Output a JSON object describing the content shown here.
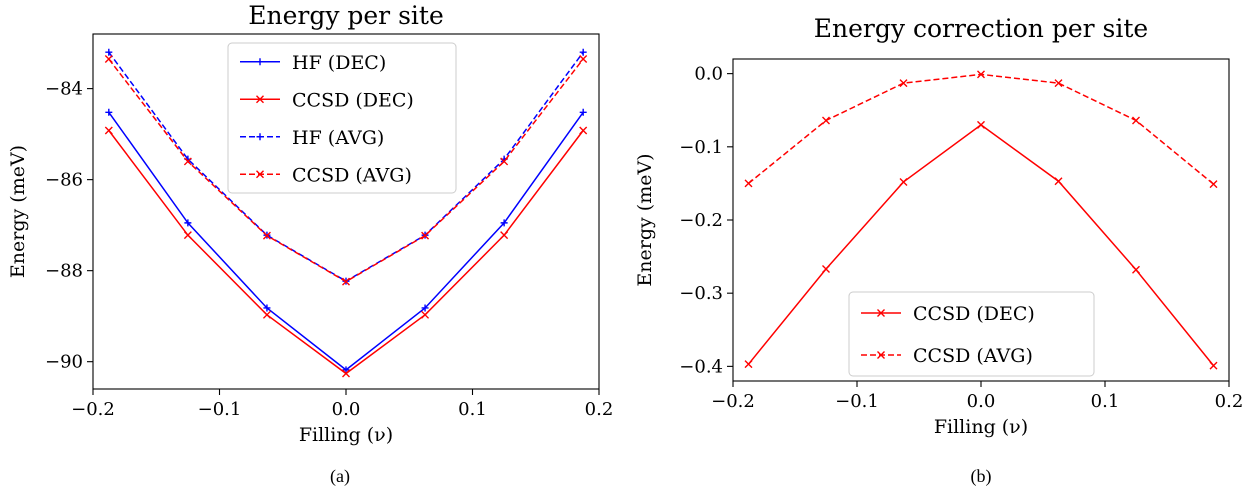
{
  "chart_data": [
    {
      "type": "line",
      "title": "Energy per site",
      "xlabel": "Filling (ν)",
      "ylabel": "Energy (meV)",
      "caption": "(a)",
      "xlim": [
        -0.2,
        0.2
      ],
      "ylim": [
        -90.6,
        -82.8
      ],
      "xticks": [
        -0.2,
        -0.1,
        0.0,
        0.1,
        0.2
      ],
      "xtick_labels": [
        "−0.2",
        "−0.1",
        "0.0",
        "0.1",
        "0.2"
      ],
      "yticks": [
        -84,
        -86,
        -88,
        -90
      ],
      "ytick_labels": [
        "−84",
        "−86",
        "−88",
        "−90"
      ],
      "x": [
        -0.1875,
        -0.125,
        -0.0625,
        0.0,
        0.0625,
        0.125,
        0.1875
      ],
      "legend_position": "top-center",
      "series": [
        {
          "name": "HF (DEC)",
          "color": "#0000ff",
          "dashed": false,
          "marker": "plus",
          "values": [
            -84.52,
            -86.95,
            -88.82,
            -90.18,
            -88.82,
            -86.95,
            -84.52
          ]
        },
        {
          "name": "CCSD (DEC)",
          "color": "#ff0000",
          "dashed": false,
          "marker": "x",
          "values": [
            -84.92,
            -87.22,
            -88.97,
            -90.26,
            -88.97,
            -87.22,
            -84.92
          ]
        },
        {
          "name": "HF (AVG)",
          "color": "#0000ff",
          "dashed": true,
          "marker": "plus",
          "values": [
            -83.2,
            -85.55,
            -87.22,
            -88.23,
            -87.22,
            -85.55,
            -83.2
          ]
        },
        {
          "name": "CCSD (AVG)",
          "color": "#ff0000",
          "dashed": true,
          "marker": "x",
          "values": [
            -83.35,
            -85.6,
            -87.23,
            -88.24,
            -87.23,
            -85.6,
            -83.35
          ]
        }
      ]
    },
    {
      "type": "line",
      "title": "Energy correction per site",
      "xlabel": "Filling (ν)",
      "ylabel": "Energy (meV)",
      "caption": "(b)",
      "xlim": [
        -0.2,
        0.2
      ],
      "ylim": [
        -0.42,
        0.02
      ],
      "xticks": [
        -0.2,
        -0.1,
        0.0,
        0.1,
        0.2
      ],
      "xtick_labels": [
        "−0.2",
        "−0.1",
        "0.0",
        "0.1",
        "0.2"
      ],
      "yticks": [
        0.0,
        -0.1,
        -0.2,
        -0.3,
        -0.4
      ],
      "ytick_labels": [
        "0.0",
        "−0.1",
        "−0.2",
        "−0.3",
        "−0.4"
      ],
      "x": [
        -0.1875,
        -0.125,
        -0.0625,
        0.0,
        0.0625,
        0.125,
        0.1875
      ],
      "legend_position": "lower-center",
      "series": [
        {
          "name": "CCSD (DEC)",
          "color": "#ff0000",
          "dashed": false,
          "marker": "x",
          "values": [
            -0.397,
            -0.267,
            -0.148,
            -0.07,
            -0.147,
            -0.268,
            -0.399
          ]
        },
        {
          "name": "CCSD (AVG)",
          "color": "#ff0000",
          "dashed": true,
          "marker": "x",
          "values": [
            -0.15,
            -0.064,
            -0.013,
            -0.001,
            -0.013,
            -0.064,
            -0.151
          ]
        }
      ]
    }
  ]
}
